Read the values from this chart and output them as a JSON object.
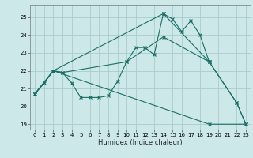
{
  "xlabel": "Humidex (Indice chaleur)",
  "bg_color": "#cce8e8",
  "grid_color": "#aacccc",
  "line_color": "#1a6e65",
  "xlim": [
    -0.5,
    23.5
  ],
  "ylim": [
    18.7,
    25.7
  ],
  "yticks": [
    19,
    20,
    21,
    22,
    23,
    24,
    25
  ],
  "xticks": [
    0,
    1,
    2,
    3,
    4,
    5,
    6,
    7,
    8,
    9,
    10,
    11,
    12,
    13,
    14,
    15,
    16,
    17,
    18,
    19,
    20,
    21,
    22,
    23
  ],
  "series": [
    {
      "x": [
        0,
        1,
        2,
        3,
        4,
        5,
        6,
        7,
        8,
        9,
        10,
        11,
        12,
        13,
        14,
        15,
        16,
        17,
        18,
        19,
        22,
        23
      ],
      "y": [
        20.7,
        21.3,
        22.0,
        21.9,
        21.3,
        20.5,
        20.5,
        20.5,
        20.6,
        21.4,
        22.5,
        23.3,
        23.3,
        22.9,
        25.2,
        24.9,
        24.2,
        24.8,
        24.0,
        22.5,
        20.2,
        19.0
      ]
    },
    {
      "x": [
        0,
        2,
        14,
        19
      ],
      "y": [
        20.7,
        22.0,
        25.2,
        22.5
      ]
    },
    {
      "x": [
        0,
        2,
        3,
        10,
        14,
        19,
        22,
        23
      ],
      "y": [
        20.7,
        22.0,
        21.9,
        22.5,
        23.9,
        22.5,
        20.2,
        19.0
      ]
    },
    {
      "x": [
        0,
        2,
        19,
        23
      ],
      "y": [
        20.7,
        22.0,
        19.0,
        19.0
      ]
    }
  ]
}
